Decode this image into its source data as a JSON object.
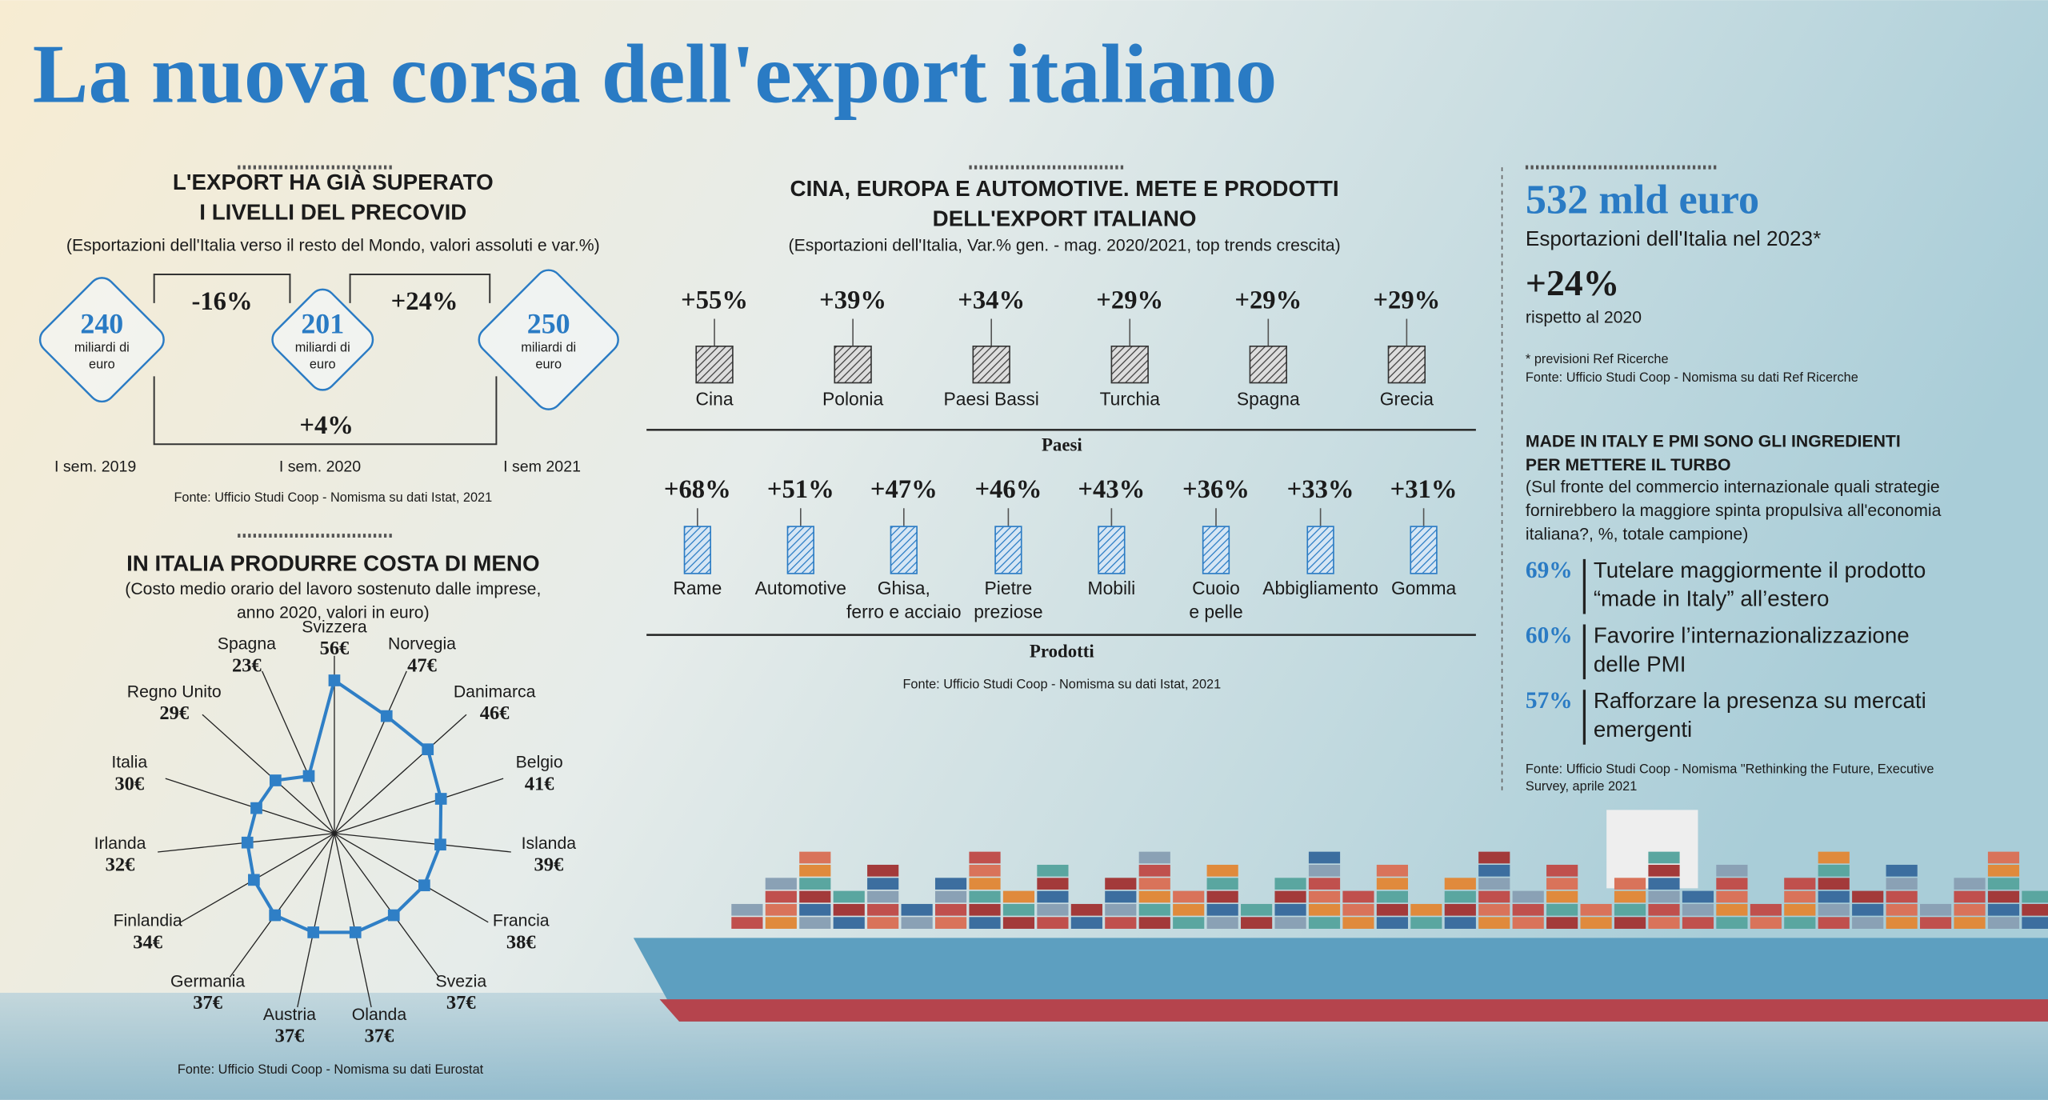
{
  "title": "La nuova corsa dell'export italiano",
  "precovid": {
    "heading": [
      "L'EXPORT HA GIÀ SUPERATO",
      "I LIVELLI DEL PRECOVID"
    ],
    "subtitle": "(Esportazioni dell'Italia verso il resto del Mondo, valori assoluti e var.%)",
    "nodes": [
      {
        "value": "240",
        "unit": [
          "miliardi di",
          "euro"
        ],
        "period": "I sem. 2019"
      },
      {
        "value": "201",
        "unit": [
          "miliardi di",
          "euro"
        ],
        "period": "I sem. 2020"
      },
      {
        "value": "250",
        "unit": [
          "miliardi di",
          "euro"
        ],
        "period": "I sem 2021"
      }
    ],
    "changes": [
      "-16%",
      "+24%",
      "+4%"
    ],
    "source": "Fonte: Ufficio Studi Coop - Nomisma su dati Istat, 2021"
  },
  "trends": {
    "heading": [
      "CINA, EUROPA E AUTOMOTIVE. METE E PRODOTTI",
      "DELL'EXPORT ITALIANO"
    ],
    "subtitle": "(Esportazioni dell'Italia, Var.% gen. - mag. 2020/2021, top trends crescita)",
    "paesi": {
      "label": "Paesi",
      "items": [
        {
          "name": [
            "Cina"
          ],
          "change": "+55%"
        },
        {
          "name": [
            "Polonia"
          ],
          "change": "+39%"
        },
        {
          "name": [
            "Paesi Bassi"
          ],
          "change": "+34%"
        },
        {
          "name": [
            "Turchia"
          ],
          "change": "+29%"
        },
        {
          "name": [
            "Spagna"
          ],
          "change": "+29%"
        },
        {
          "name": [
            "Grecia"
          ],
          "change": "+29%"
        }
      ]
    },
    "prodotti": {
      "label": "Prodotti",
      "items": [
        {
          "name": [
            "Rame"
          ],
          "change": "+68%"
        },
        {
          "name": [
            "Automotive"
          ],
          "change": "+51%"
        },
        {
          "name": [
            "Ghisa,",
            "ferro e acciaio"
          ],
          "change": "+47%"
        },
        {
          "name": [
            "Pietre",
            "preziose"
          ],
          "change": "+46%"
        },
        {
          "name": [
            "Mobili"
          ],
          "change": "+43%"
        },
        {
          "name": [
            "Cuoio",
            "e pelle"
          ],
          "change": "+36%"
        },
        {
          "name": [
            "Abbigliamento"
          ],
          "change": "+33%"
        },
        {
          "name": [
            "Gomma"
          ],
          "change": "+31%"
        }
      ]
    },
    "source": "Fonte: Ufficio Studi Coop - Nomisma su dati Istat, 2021"
  },
  "costo": {
    "heading": "IN ITALIA PRODURRE COSTA DI MENO",
    "subtitle": [
      "(Costo medio orario del lavoro sostenuto dalle imprese,",
      "anno 2020, valori in euro)"
    ],
    "source": "Fonte: Ufficio Studi Coop - Nomisma su dati Eurostat"
  },
  "chart_data": [
    {
      "type": "radar",
      "color": "#2f7fc6",
      "categories": [
        "Svizzera",
        "Norvegia",
        "Danimarca",
        "Belgio",
        "Islanda",
        "Francia",
        "Svezia",
        "Olanda",
        "Austria",
        "Germania",
        "Finlandia",
        "Irlanda",
        "Italia",
        "Regno Unito",
        "Spagna"
      ],
      "values": [
        56,
        47,
        46,
        41,
        39,
        38,
        37,
        37,
        37,
        37,
        34,
        32,
        30,
        29,
        23
      ],
      "value_labels": [
        "56€",
        "47€",
        "46€",
        "41€",
        "39€",
        "38€",
        "37€",
        "37€",
        "37€",
        "37€",
        "34€",
        "32€",
        "30€",
        "29€",
        "23€"
      ],
      "ylim": [
        0,
        65
      ]
    }
  ],
  "summary": {
    "big": "532 mld euro",
    "big_caption": "Esportazioni dell'Italia nel 2023*",
    "change": "+24%",
    "change_caption": "rispetto al 2020",
    "notes": [
      "* previsioni Ref Ricerche",
      "Fonte: Ufficio Studi Coop - Nomisma su dati Ref Ricerche"
    ],
    "heading": [
      "MADE IN ITALY E PMI SONO GLI INGREDIENTI",
      "PER METTERE IL TURBO"
    ],
    "subtitle": [
      "(Sul fronte del commercio internazionale quali strategie",
      "fornirebbero la maggiore spinta propulsiva all'economia",
      "italiana?, %, totale campione)"
    ],
    "items": [
      {
        "pct": "69%",
        "text": [
          "Tutelare maggiormente il prodotto",
          "“made in Italy” all’estero"
        ]
      },
      {
        "pct": "60%",
        "text": [
          "Favorire l’internazionalizzazione",
          "delle PMI"
        ]
      },
      {
        "pct": "57%",
        "text": [
          "Rafforzare la presenza su mercati",
          "emergenti"
        ]
      }
    ],
    "source": [
      "Fonte: Ufficio Studi Coop - Nomisma \"Rethinking the Future, Executive",
      "Survey, aprile 2021"
    ]
  }
}
